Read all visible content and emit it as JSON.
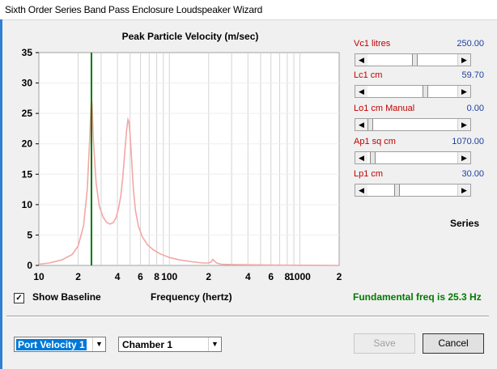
{
  "window": {
    "title": "Sixth Order Series Band Pass Enclosure Loudspeaker Wizard"
  },
  "chart_data": {
    "type": "line",
    "title": "Peak Particle Velocity (m/sec)",
    "xlabel": "Frequency (hertz)",
    "ylabel": "",
    "x_scale": "log",
    "xlim": [
      10,
      2000
    ],
    "ylim": [
      0,
      35
    ],
    "y_ticks": [
      "35",
      "30",
      "25",
      "20",
      "15",
      "10",
      "5",
      "0"
    ],
    "x_tick_labels": [
      {
        "x": 10,
        "label": "10"
      },
      {
        "x": 20,
        "label": "2"
      },
      {
        "x": 40,
        "label": "4"
      },
      {
        "x": 60,
        "label": "6"
      },
      {
        "x": 80,
        "label": "8"
      },
      {
        "x": 100,
        "label": "100"
      },
      {
        "x": 200,
        "label": "2"
      },
      {
        "x": 400,
        "label": "4"
      },
      {
        "x": 600,
        "label": "6"
      },
      {
        "x": 800,
        "label": "8"
      },
      {
        "x": 1000,
        "label": "1000"
      },
      {
        "x": 2000,
        "label": "2"
      }
    ],
    "fundamental_marker_hz": 25.3,
    "series": [
      {
        "color": "#f4a6a6",
        "x": [
          10,
          12,
          15,
          18,
          20,
          22,
          23.5,
          24.5,
          25,
          25.3,
          25.6,
          26.2,
          27.5,
          29,
          31,
          33,
          35,
          37,
          39,
          41,
          42.5,
          44,
          45.5,
          47,
          48.2,
          49,
          50,
          51.5,
          53,
          55,
          58,
          62,
          68,
          75,
          85,
          100,
          120,
          150,
          180,
          200,
          210,
          215,
          220,
          230,
          250,
          300,
          400,
          600,
          1000,
          1500,
          2000
        ],
        "values": [
          0.2,
          0.4,
          0.9,
          1.8,
          3.2,
          6.5,
          12.5,
          20.5,
          25.5,
          27.5,
          26.5,
          20.5,
          13.5,
          9.8,
          8.0,
          7.1,
          6.8,
          7.0,
          7.8,
          9.6,
          11.5,
          14.5,
          18.5,
          22.2,
          24.0,
          23.6,
          21.5,
          17.0,
          12.5,
          9.0,
          6.4,
          4.7,
          3.4,
          2.6,
          1.9,
          1.3,
          0.9,
          0.6,
          0.4,
          0.4,
          0.6,
          1.0,
          0.8,
          0.4,
          0.2,
          0.15,
          0.1,
          0.05,
          0.02,
          0.01,
          0.0
        ]
      }
    ]
  },
  "sliders": [
    {
      "label": "Vc1  litres",
      "value": "250.00",
      "level": 0.5
    },
    {
      "label": "Lc1  cm",
      "value": "59.70",
      "level": 0.62
    },
    {
      "label": "Lo1  cm  Manual",
      "value": "0.00",
      "level": 0.0
    },
    {
      "label": "Ap1  sq cm",
      "value": "1070.00",
      "level": 0.03
    },
    {
      "label": "Lp1  cm",
      "value": "30.00",
      "level": 0.3
    }
  ],
  "series_label": "Series",
  "show_baseline": {
    "label": "Show Baseline",
    "checked": true,
    "check_glyph": "✓"
  },
  "fundamental_text": "Fundamental freq is 25.3 Hz",
  "selectors": {
    "output_select": "Port Velocity 1",
    "chamber_select": "Chamber 1"
  },
  "buttons": {
    "save": "Save",
    "cancel": "Cancel"
  },
  "colors": {
    "curve": "#f4a6a6",
    "marker": "#007a00",
    "slider_label": "#c00000",
    "slider_value": "#1a3fa0",
    "fundamental_text": "#007a00"
  }
}
